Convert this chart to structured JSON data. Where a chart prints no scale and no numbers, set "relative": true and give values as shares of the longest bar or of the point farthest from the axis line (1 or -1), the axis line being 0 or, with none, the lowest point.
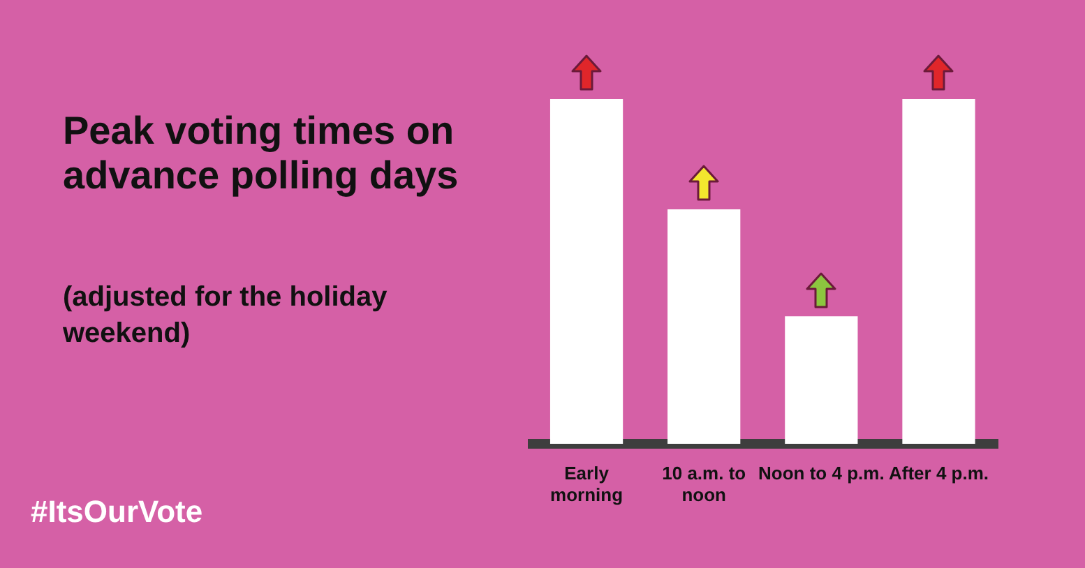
{
  "chart_data": {
    "type": "bar",
    "title": "Peak voting times on advance polling days",
    "subtitle": "(adjusted for the holiday weekend)",
    "categories": [
      "Early morning",
      "10 a.m. to noon",
      "Noon to 4 p.m.",
      "After 4 p.m."
    ],
    "values": [
      1,
      0.68,
      0.37,
      1
    ],
    "color": "#ffffff",
    "relative": true,
    "grid": false,
    "legend": false,
    "annotations": [
      "#ItsOurVote"
    ]
  }
}
